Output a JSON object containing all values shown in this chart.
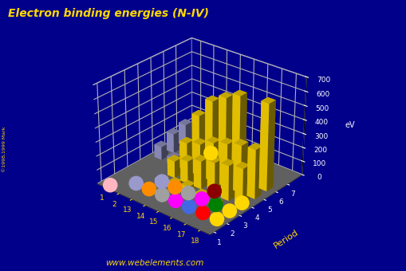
{
  "title": "Electron binding energies (N-IV)",
  "title_color": "#FFD700",
  "background_color": "#00008B",
  "floor_color": "#606060",
  "wall_color": "#00008B",
  "grid_color": "#FFFFFF",
  "ylabel": "Period",
  "zlabel": "eV",
  "z_ticks": [
    0,
    100,
    200,
    300,
    400,
    500,
    600,
    700
  ],
  "x_labels": [
    "1",
    "2",
    "13",
    "14",
    "15",
    "16",
    "17",
    "18"
  ],
  "y_labels": [
    "1",
    "2",
    "3",
    "4",
    "5",
    "6",
    "7"
  ],
  "watermark": "www.webelements.com",
  "copyright": "©1998,1999 Mark",
  "elev": 28,
  "azim": -50,
  "bars": [
    {
      "xidx": 0,
      "period": 4,
      "value": 95,
      "color": "#9999CC"
    },
    {
      "xidx": 0,
      "period": 5,
      "value": 140,
      "color": "#9999CC"
    },
    {
      "xidx": 0,
      "period": 6,
      "value": 160,
      "color": "#9999CC"
    },
    {
      "xidx": 1,
      "period": 4,
      "value": 50,
      "color": "#9999CC"
    },
    {
      "xidx": 1,
      "period": 5,
      "value": 70,
      "color": "#9999CC"
    },
    {
      "xidx": 2,
      "period": 2,
      "value": 30,
      "color": "#FFD700"
    },
    {
      "xidx": 2,
      "period": 3,
      "value": 120,
      "color": "#FFD700"
    },
    {
      "xidx": 2,
      "period": 4,
      "value": 200,
      "color": "#FFD700"
    },
    {
      "xidx": 2,
      "period": 5,
      "value": 350,
      "color": "#FFD700"
    },
    {
      "xidx": 3,
      "period": 2,
      "value": 50,
      "color": "#FFD700"
    },
    {
      "xidx": 3,
      "period": 3,
      "value": 160,
      "color": "#FFD700"
    },
    {
      "xidx": 3,
      "period": 4,
      "value": 230,
      "color": "#FFD700"
    },
    {
      "xidx": 3,
      "period": 5,
      "value": 490,
      "color": "#FFD700"
    },
    {
      "xidx": 4,
      "period": 2,
      "value": 70,
      "color": "#FFD700"
    },
    {
      "xidx": 4,
      "period": 3,
      "value": 200,
      "color": "#FFD700"
    },
    {
      "xidx": 4,
      "period": 4,
      "value": 280,
      "color": "#FFD700"
    },
    {
      "xidx": 4,
      "period": 5,
      "value": 550,
      "color": "#FFD700"
    },
    {
      "xidx": 5,
      "period": 2,
      "value": 50,
      "color": "#FFD700"
    },
    {
      "xidx": 5,
      "period": 3,
      "value": 230,
      "color": "#FFD700"
    },
    {
      "xidx": 5,
      "period": 4,
      "value": 310,
      "color": "#FFD700"
    },
    {
      "xidx": 5,
      "period": 5,
      "value": 600,
      "color": "#FFD700"
    },
    {
      "xidx": 6,
      "period": 2,
      "value": 30,
      "color": "#FFD700"
    },
    {
      "xidx": 6,
      "period": 3,
      "value": 250,
      "color": "#FFD700"
    },
    {
      "xidx": 6,
      "period": 4,
      "value": 340,
      "color": "#FFD700"
    },
    {
      "xidx": 7,
      "period": 3,
      "value": 270,
      "color": "#FFD700"
    },
    {
      "xidx": 7,
      "period": 4,
      "value": 350,
      "color": "#FFD700"
    },
    {
      "xidx": 7,
      "period": 5,
      "value": 620,
      "color": "#FFD700"
    }
  ],
  "dots": [
    {
      "xidx": 0,
      "period": 0,
      "color": "#FFB6C1"
    },
    {
      "xidx": 1,
      "period": 1,
      "color": "#9999CC"
    },
    {
      "xidx": 2,
      "period": 1,
      "color": "#FF8C00"
    },
    {
      "xidx": 3,
      "period": 1,
      "color": "#A0A0A0"
    },
    {
      "xidx": 4,
      "period": 1,
      "color": "#FF00FF"
    },
    {
      "xidx": 5,
      "period": 1,
      "color": "#4169E1"
    },
    {
      "xidx": 6,
      "period": 1,
      "color": "#FF0000"
    },
    {
      "xidx": 7,
      "period": 1,
      "color": "#FFD700"
    },
    {
      "xidx": 2,
      "period": 2,
      "color": "#9999CC"
    },
    {
      "xidx": 3,
      "period": 2,
      "color": "#FF8C00"
    },
    {
      "xidx": 4,
      "period": 2,
      "color": "#A0A0A0"
    },
    {
      "xidx": 5,
      "period": 2,
      "color": "#FF00FF"
    },
    {
      "xidx": 6,
      "period": 2,
      "color": "#008000"
    },
    {
      "xidx": 7,
      "period": 2,
      "color": "#FFD700"
    },
    {
      "xidx": 5,
      "period": 3,
      "color": "#8B0000"
    },
    {
      "xidx": 7,
      "period": 3,
      "color": "#FFD700"
    },
    {
      "xidx": 2,
      "period": 6,
      "color": "#FFD700"
    }
  ]
}
